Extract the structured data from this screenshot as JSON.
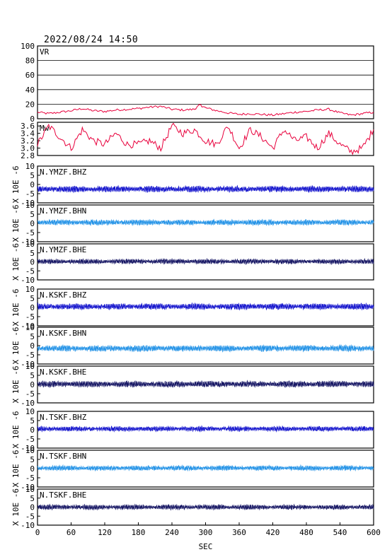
{
  "header": {
    "datetime": "2022/08/24 14:50"
  },
  "colors": {
    "vr": "#e8003c",
    "mw": "#e8003c",
    "bhz": "#1010cc",
    "bhn": "#1e90e6",
    "bhe": "#101060",
    "frame": "#000000",
    "grid": "#000000"
  },
  "chart_data": {
    "type": "line",
    "xlabel": "SEC",
    "xlim": [
      0,
      600
    ],
    "x_ticks": [
      "0",
      "60",
      "120",
      "180",
      "240",
      "300",
      "360",
      "420",
      "480",
      "540",
      "600"
    ],
    "panels": [
      {
        "label": "VR",
        "ylim": [
          0,
          100
        ],
        "y_ticks": [
          "0",
          "20",
          "40",
          "60",
          "80",
          "100"
        ],
        "grid": true,
        "color": "vr",
        "series": {
          "x": [
            0,
            20,
            40,
            60,
            80,
            100,
            120,
            140,
            160,
            180,
            200,
            220,
            240,
            260,
            280,
            290,
            300,
            320,
            340,
            360,
            380,
            400,
            420,
            440,
            460,
            480,
            500,
            520,
            540,
            560,
            580,
            600
          ],
          "y": [
            9,
            7,
            9,
            11,
            14,
            11,
            10,
            12,
            13,
            14,
            16,
            17,
            13,
            12,
            13,
            19,
            15,
            11,
            8,
            6,
            7,
            6,
            5,
            7,
            9,
            10,
            12,
            13,
            8,
            5,
            7,
            9
          ]
        }
      },
      {
        "label": "Mw",
        "ylim": [
          2.8,
          3.7
        ],
        "y_ticks": [
          "2.8",
          "3.0",
          "3.2",
          "3.4",
          "3.6"
        ],
        "grid": false,
        "color": "mw",
        "series": {
          "x": [
            0,
            20,
            40,
            60,
            80,
            100,
            120,
            140,
            160,
            180,
            200,
            220,
            240,
            260,
            280,
            300,
            320,
            340,
            360,
            380,
            400,
            420,
            440,
            460,
            480,
            500,
            520,
            540,
            560,
            580,
            600
          ],
          "y": [
            3.1,
            3.6,
            3.3,
            3.0,
            3.5,
            3.2,
            3.1,
            3.4,
            3.1,
            3.1,
            3.2,
            3.0,
            3.6,
            3.4,
            3.5,
            3.2,
            3.1,
            3.6,
            3.0,
            3.5,
            3.3,
            3.0,
            3.5,
            3.2,
            3.3,
            3.0,
            3.4,
            3.1,
            2.9,
            3.0,
            3.5
          ]
        }
      },
      {
        "label": "N.YMZF.BHZ",
        "unit": "X 10E -6",
        "ylim": [
          -10,
          10
        ],
        "y_ticks": [
          "-10",
          "-5",
          "0",
          "5",
          "10"
        ],
        "color": "bhz",
        "offset": -2.5,
        "amplitude": 0.9
      },
      {
        "label": "N.YMZF.BHN",
        "unit": "X 10E -6",
        "ylim": [
          -10,
          10
        ],
        "y_ticks": [
          "-10",
          "-5",
          "0",
          "5",
          "10"
        ],
        "color": "bhn",
        "offset": 0.5,
        "amplitude": 0.8
      },
      {
        "label": "N.YMZF.BHE",
        "unit": "X 10E -6",
        "ylim": [
          -10,
          10
        ],
        "y_ticks": [
          "-10",
          "-5",
          "0",
          "5",
          "10"
        ],
        "color": "bhe",
        "offset": 0.2,
        "amplitude": 0.7
      },
      {
        "label": "N.KSKF.BHZ",
        "unit": "X 10E -6",
        "ylim": [
          -10,
          10
        ],
        "y_ticks": [
          "-10",
          "-5",
          "0",
          "5",
          "10"
        ],
        "color": "bhz",
        "offset": 0.5,
        "amplitude": 0.9
      },
      {
        "label": "N.KSKF.BHN",
        "unit": "X 10E -6",
        "ylim": [
          -10,
          10
        ],
        "y_ticks": [
          "-10",
          "-5",
          "0",
          "5",
          "10"
        ],
        "color": "bhn",
        "offset": -1.5,
        "amplitude": 0.9
      },
      {
        "label": "N.KSKF.BHE",
        "unit": "X 10E -6",
        "ylim": [
          -10,
          10
        ],
        "y_ticks": [
          "-10",
          "-5",
          "0",
          "5",
          "10"
        ],
        "color": "bhe",
        "offset": 0.2,
        "amplitude": 0.9
      },
      {
        "label": "N.TSKF.BHZ",
        "unit": "X 10E -6",
        "ylim": [
          -10,
          10
        ],
        "y_ticks": [
          "-10",
          "-5",
          "0",
          "5",
          "10"
        ],
        "color": "bhz",
        "offset": 0.5,
        "amplitude": 0.7
      },
      {
        "label": "N.TSKF.BHN",
        "unit": "X 10E -6",
        "ylim": [
          -10,
          10
        ],
        "y_ticks": [
          "-10",
          "-5",
          "0",
          "5",
          "10"
        ],
        "color": "bhn",
        "offset": 0.3,
        "amplitude": 0.7
      },
      {
        "label": "N.TSKF.BHE",
        "unit": "X 10E -6",
        "ylim": [
          -10,
          10
        ],
        "y_ticks": [
          "-10",
          "-5",
          "0",
          "5",
          "10"
        ],
        "color": "bhe",
        "offset": 0.0,
        "amplitude": 0.7
      }
    ]
  }
}
